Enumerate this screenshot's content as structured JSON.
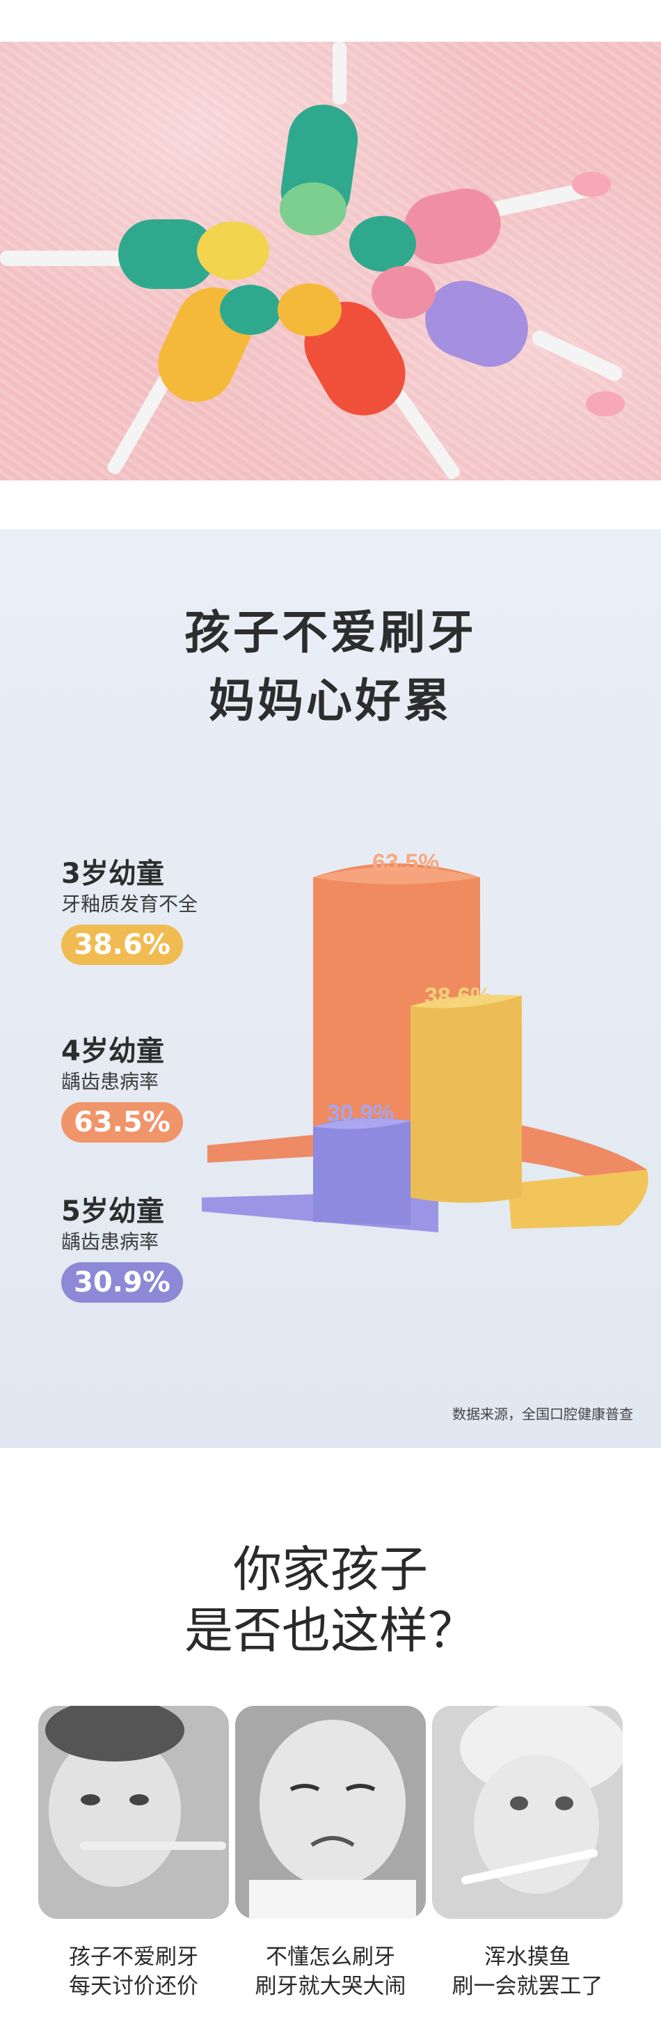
{
  "stats": {
    "title_line1": "孩子不爱刷牙",
    "title_line2": "妈妈心好累",
    "items": [
      {
        "age": "3岁幼童",
        "desc": "牙釉质发育不全",
        "value": "38.6%",
        "color": "#f0bc52"
      },
      {
        "age": "4岁幼童",
        "desc": "龋齿患病率",
        "value": "63.5%",
        "color": "#f0946a"
      },
      {
        "age": "5岁幼童",
        "desc": "龋齿患病率",
        "value": "30.9%",
        "color": "#8c8ad6"
      }
    ],
    "chart": {
      "labels": [
        "63.5%",
        "38.6%",
        "30.9%"
      ]
    },
    "source": "数据来源，全国口腔健康普查"
  },
  "card": {
    "title_line1": "你家孩子",
    "title_line2": "是否也这样？",
    "captions": [
      {
        "line1": "孩子不爱刷牙",
        "line2": "每天讨价还价"
      },
      {
        "line1": "不懂怎么刷牙",
        "line2": "刷牙就大哭大闹"
      },
      {
        "line1": "浑水摸鱼",
        "line2": "刷一会就罢工了"
      }
    ]
  }
}
